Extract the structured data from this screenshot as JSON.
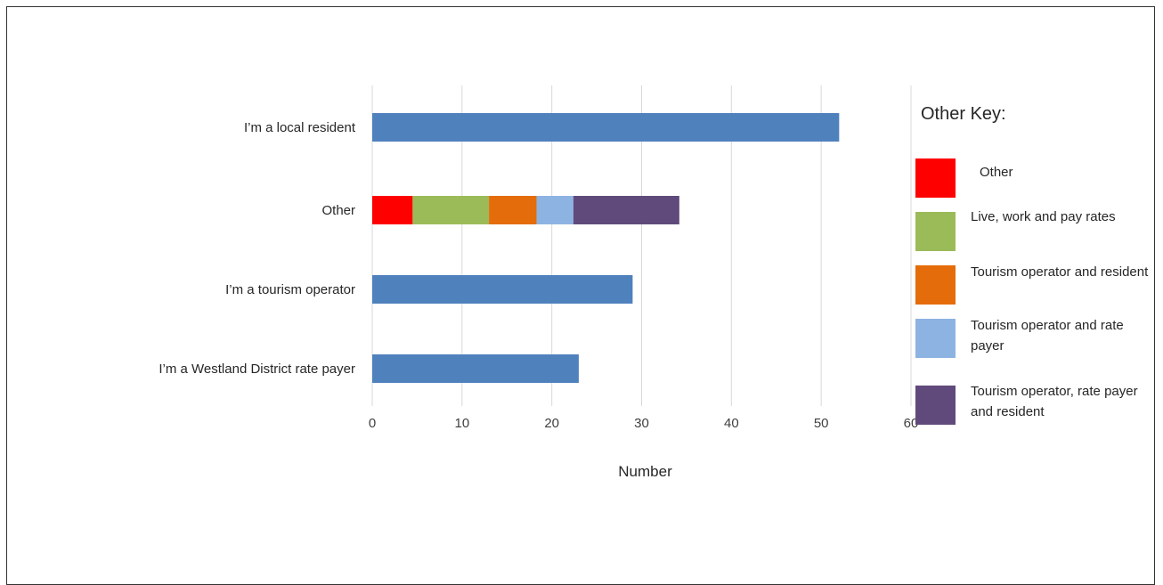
{
  "chart_data": {
    "type": "bar",
    "orientation": "horizontal",
    "stacked": true,
    "xlabel": "Number",
    "xlim": [
      0,
      60
    ],
    "xticks": [
      0,
      10,
      20,
      30,
      40,
      50,
      60
    ],
    "grid": true,
    "categories": [
      "I’m a local resident",
      "Other",
      "I’m a tourism operator",
      "I’m a Westland District rate payer"
    ],
    "series": [
      {
        "color": "#4f81bd",
        "values": [
          52,
          0,
          29,
          23
        ]
      },
      {
        "color": "#ff0000",
        "values": [
          0,
          4.5,
          0,
          0
        ]
      },
      {
        "color": "#9bbb59",
        "values": [
          0,
          8.5,
          0,
          0
        ]
      },
      {
        "color": "#e46c0a",
        "values": [
          0,
          5.3,
          0,
          0
        ]
      },
      {
        "color": "#8db3e2",
        "values": [
          0,
          4.1,
          0,
          0
        ]
      },
      {
        "color": "#604a7b",
        "values": [
          0,
          11.8,
          0,
          0
        ]
      }
    ]
  },
  "legend": {
    "title": "Other Key:",
    "items": [
      {
        "label": "Other",
        "color": "#ff0000"
      },
      {
        "label": "Live, work and pay rates",
        "color": "#9bbb59"
      },
      {
        "label": "Tourism operator and resident",
        "color": "#e46c0a"
      },
      {
        "label": "Tourism operator and rate payer",
        "color": "#8db3e2"
      },
      {
        "label": "Tourism operator, rate payer and resident",
        "color": "#604a7b"
      }
    ]
  }
}
